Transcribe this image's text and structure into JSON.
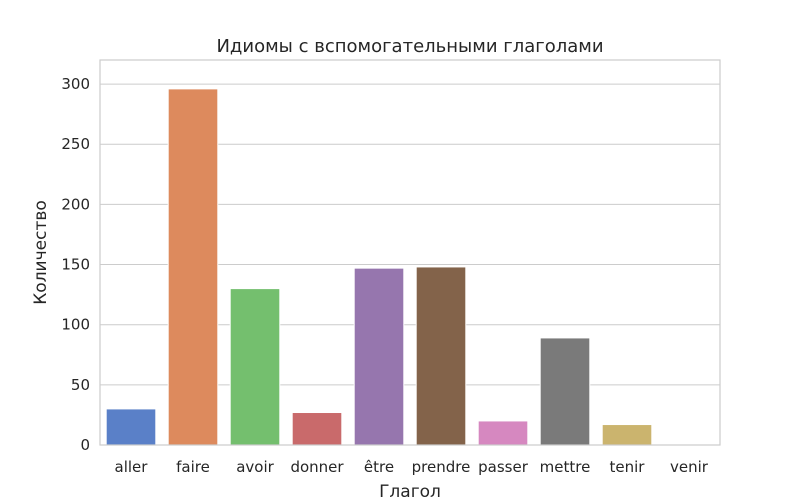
{
  "chart_data": {
    "type": "bar",
    "title": "Идиомы с вспомогательными глаголами",
    "xlabel": "Глагол",
    "ylabel": "Количество",
    "categories": [
      "aller",
      "faire",
      "avoir",
      "donner",
      "être",
      "prendre",
      "passer",
      "mettre",
      "tenir",
      "venir"
    ],
    "values": [
      30,
      296,
      130,
      27,
      147,
      148,
      20,
      89,
      17,
      0
    ],
    "colors": [
      "#5a80c8",
      "#dd8a5d",
      "#74bf6e",
      "#c96a6b",
      "#9676ae",
      "#83634a",
      "#d688c0",
      "#7a7a7a",
      "#cbb46e",
      "#76bfd3"
    ],
    "ylim": [
      0,
      320
    ],
    "yticks": [
      0,
      50,
      100,
      150,
      200,
      250,
      300
    ],
    "grid": true,
    "legend": "none"
  }
}
